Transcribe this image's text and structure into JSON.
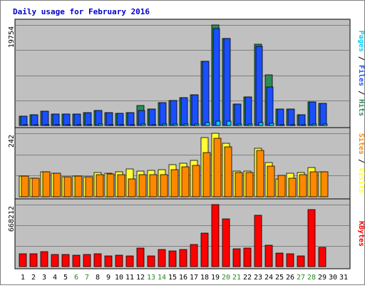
{
  "chart_data": {
    "type": "bar",
    "title": "Daily usage for February 2016",
    "categories": [
      "1",
      "2",
      "3",
      "4",
      "5",
      "6",
      "7",
      "8",
      "9",
      "10",
      "11",
      "12",
      "13",
      "14",
      "15",
      "16",
      "17",
      "18",
      "19",
      "20",
      "21",
      "22",
      "23",
      "24",
      "25",
      "26",
      "27",
      "28",
      "29",
      "30",
      "31"
    ],
    "weekend_days": [
      6,
      7,
      13,
      14,
      20,
      21,
      27,
      28
    ],
    "colors": {
      "title": "#0000cc",
      "hits": "#2e8b57",
      "files": "#1a4fff",
      "pages": "#00ccff",
      "visits": "#ffff33",
      "sites": "#ff8800",
      "kbytes": "#ff0000",
      "weekend_label": "#228b22",
      "panel_bg": "#c0c0c0",
      "frame": "#808080"
    },
    "panels": [
      {
        "id": "hits-files-pages",
        "ymax_label": "19754",
        "ymax": 19754,
        "side_label": [
          {
            "text": "Pages",
            "color": "#00ccff"
          },
          {
            "text": " / ",
            "color": "#000000"
          },
          {
            "text": "Files",
            "color": "#1a4fff"
          },
          {
            "text": " / ",
            "color": "#000000"
          },
          {
            "text": "Hits",
            "color": "#2e8b57"
          }
        ],
        "series": [
          {
            "name": "Hits",
            "values": [
              1811,
              2170,
              2823,
              2201,
              2271,
              2306,
              2475,
              2966,
              2580,
              2321,
              2567,
              3910,
              3239,
              4474,
              4902,
              5452,
              6066,
              12561,
              19754,
              17106,
              4143,
              5565,
              15996,
              10015,
              3269,
              3184,
              2138,
              4570,
              4352,
              0,
              0
            ]
          },
          {
            "name": "Files",
            "values": [
              1811,
              2170,
              2823,
              2201,
              2271,
              2306,
              2475,
              2966,
              2580,
              2321,
              2567,
              3010,
              3239,
              4474,
              4902,
              5452,
              6066,
              12561,
              19061,
              17106,
              4143,
              5565,
              15496,
              7615,
              3269,
              3184,
              2138,
              4570,
              4352,
              0,
              0
            ]
          },
          {
            "name": "Pages",
            "values": [
              180,
              170,
              180,
              160,
              170,
              160,
              170,
              230,
              180,
              170,
              190,
              250,
              200,
              240,
              260,
              300,
              340,
              520,
              900,
              800,
              230,
              300,
              600,
              380,
              200,
              190,
              150,
              240,
              220,
              0,
              0
            ]
          }
        ]
      },
      {
        "id": "visits-sites",
        "ymax_label": "242",
        "ymax": 242,
        "side_label": [
          {
            "text": "Sites",
            "color": "#ff8800"
          },
          {
            "text": " / ",
            "color": "#000000"
          },
          {
            "text": "Visits",
            "color": "#ffff33"
          }
        ],
        "series": [
          {
            "name": "Visits",
            "values": [
              78,
              71,
              95,
              90,
              76,
              78,
              76,
              93,
              91,
              94,
              105,
              98,
              100,
              102,
              121,
              129,
              138,
              225,
              242,
              204,
              99,
              97,
              185,
              130,
              67,
              91,
              92,
              112,
              96,
              0,
              0
            ]
          },
          {
            "name": "Sites",
            "values": [
              78,
              71,
              95,
              90,
              76,
              78,
              76,
              83,
              86,
              85,
              68,
              85,
              84,
              84,
              103,
              113,
              120,
              168,
              222,
              190,
              93,
              93,
              176,
              116,
              82,
              72,
              85,
              95,
              96,
              0,
              0
            ]
          }
        ]
      },
      {
        "id": "kbytes",
        "ymax_label": "668212",
        "ymax": 668212,
        "side_label": [
          {
            "text": "KBytes",
            "color": "#ff0000"
          }
        ],
        "series": [
          {
            "name": "KBytes",
            "values": [
              136000,
              138000,
              161000,
              133000,
              133000,
              126000,
              128000,
              138000,
              112000,
              122000,
              118000,
              198000,
              115000,
              186000,
              166000,
              186000,
              236000,
              364000,
              668212,
              511000,
              191000,
              198000,
              554000,
              227000,
              149000,
              137000,
              114000,
              616000,
              207000,
              0,
              0
            ]
          }
        ]
      }
    ]
  }
}
